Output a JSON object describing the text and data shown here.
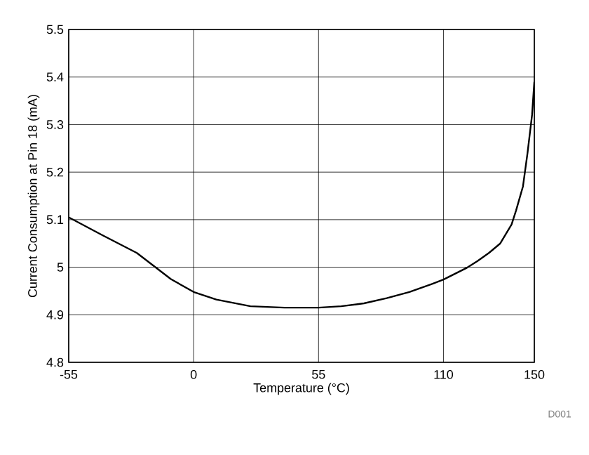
{
  "chart_data": {
    "type": "line",
    "xlabel": "Temperature (°C)",
    "ylabel": "Current Consumption at Pin 18 (mA)",
    "annotations": [
      "D001"
    ],
    "x": [
      -55,
      -40,
      -25,
      -10,
      0,
      10,
      25,
      40,
      55,
      65,
      75,
      85,
      95,
      105,
      110,
      120,
      125,
      130,
      135,
      140,
      142,
      145,
      147,
      149,
      150
    ],
    "series": [
      {
        "color": "#000000",
        "values": [
          5.105,
          5.067,
          5.03,
          4.975,
          4.948,
          4.932,
          4.918,
          4.915,
          4.915,
          4.918,
          4.924,
          4.935,
          4.948,
          4.965,
          4.974,
          4.998,
          5.013,
          5.03,
          5.05,
          5.09,
          5.12,
          5.17,
          5.24,
          5.32,
          5.39
        ]
      }
    ],
    "xlim": [
      -55,
      150
    ],
    "xticks": [
      -55,
      0,
      55,
      110,
      150
    ],
    "ylim": [
      4.8,
      5.5
    ],
    "yticks": [
      4.8,
      4.9,
      5,
      5.1,
      5.2,
      5.3,
      5.4,
      5.5
    ],
    "grid": true,
    "marker": "none",
    "line_style": "solid"
  }
}
